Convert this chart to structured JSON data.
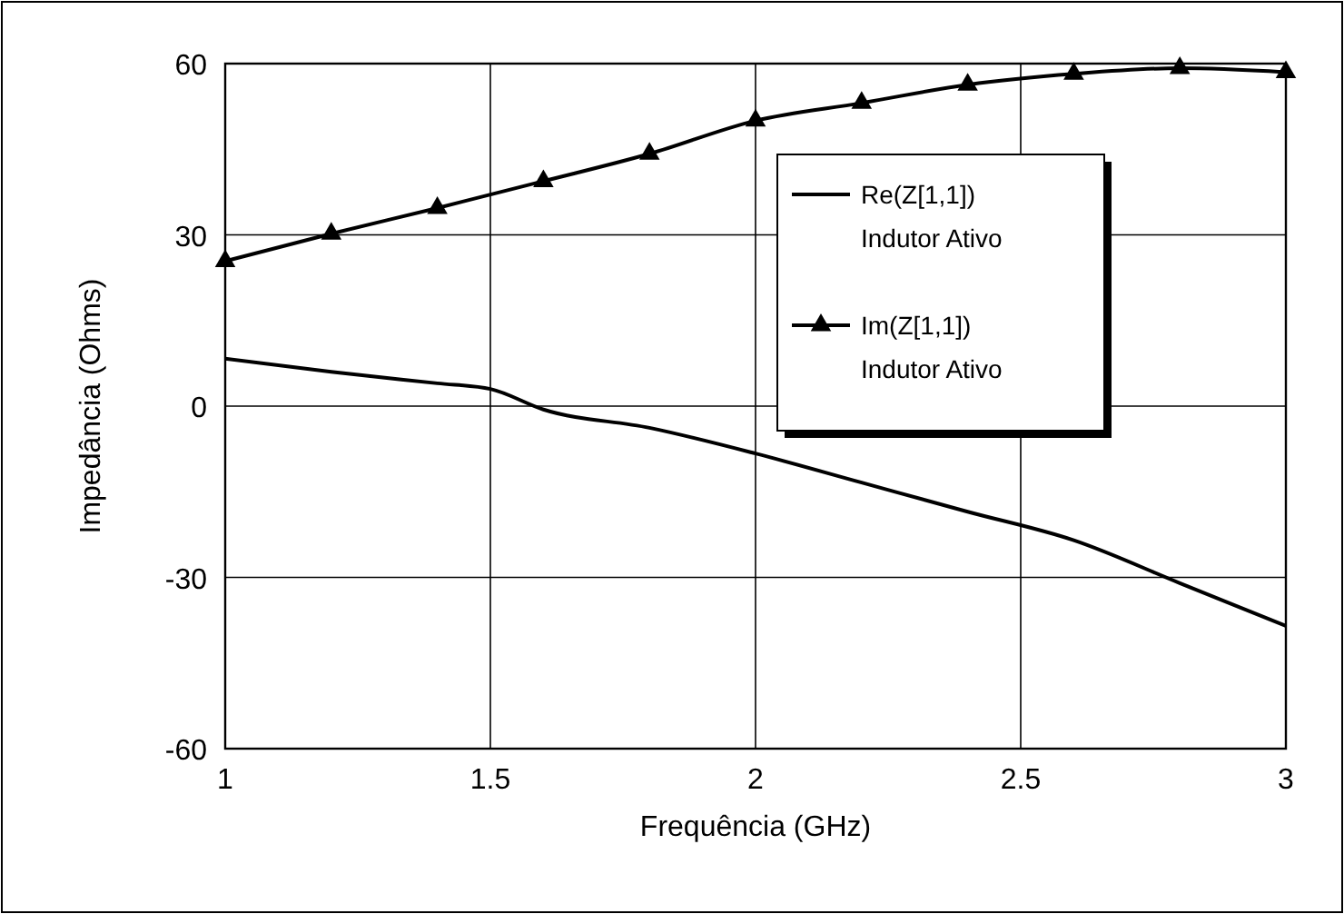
{
  "chart_data": {
    "type": "line",
    "xlabel": "Frequência (GHz)",
    "ylabel": "Impedância (Ohms)",
    "xlim": [
      1,
      3
    ],
    "xticks": [
      1,
      1.5,
      2,
      2.5,
      3
    ],
    "ylim": [
      -60,
      60
    ],
    "yticks": [
      -60,
      -30,
      0,
      30,
      60
    ],
    "grid": true,
    "legend": "top right",
    "series": [
      {
        "name": "Re(Z[1,1])\nIndutor Ativo",
        "color": "#000000",
        "marker": "none",
        "x": [
          1,
          1.2,
          1.4,
          1.5,
          1.6,
          1.8,
          2,
          2.2,
          2.4,
          2.6,
          2.8,
          3
        ],
        "values": [
          8.3,
          6,
          4,
          3,
          -0.6,
          -3.8,
          -8.3,
          -13.4,
          -18.5,
          -23.5,
          -31,
          -38.5
        ]
      },
      {
        "name": "Im(Z[1,1])\nIndutor Ativo",
        "color": "#000000",
        "marker": "triangle",
        "x": [
          1,
          1.2,
          1.4,
          1.6,
          1.8,
          2,
          2.2,
          2.4,
          2.6,
          2.8,
          3
        ],
        "values": [
          25.4,
          30.2,
          34.7,
          39.4,
          44.2,
          50,
          53.1,
          56.3,
          58.2,
          59.2,
          58.5
        ]
      }
    ]
  }
}
